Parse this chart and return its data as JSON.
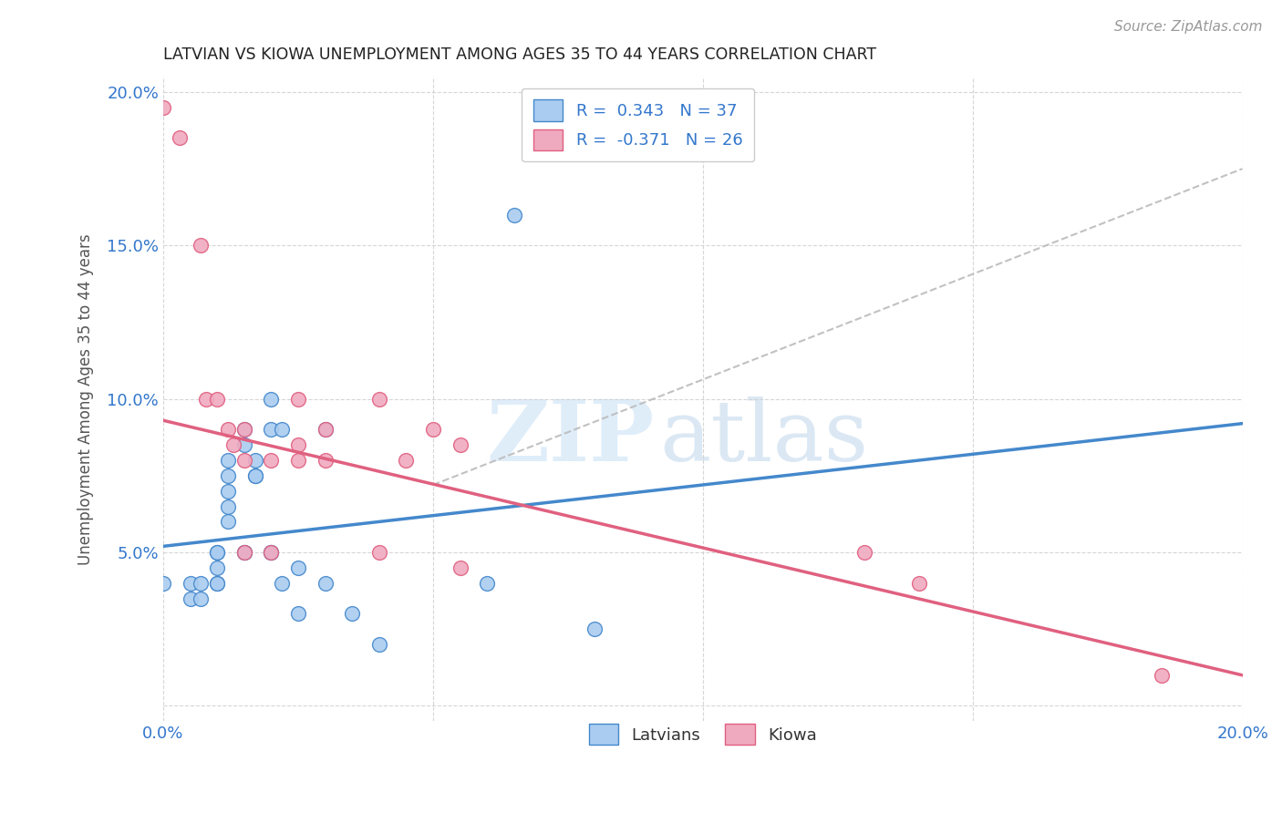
{
  "title": "LATVIAN VS KIOWA UNEMPLOYMENT AMONG AGES 35 TO 44 YEARS CORRELATION CHART",
  "source": "Source: ZipAtlas.com",
  "ylabel": "Unemployment Among Ages 35 to 44 years",
  "xlim": [
    0.0,
    0.2
  ],
  "ylim": [
    -0.005,
    0.205
  ],
  "ytick_vals": [
    0.0,
    0.05,
    0.1,
    0.15,
    0.2
  ],
  "ytick_labels": [
    "",
    "5.0%",
    "10.0%",
    "15.0%",
    "20.0%"
  ],
  "xtick_vals": [
    0.0,
    0.05,
    0.1,
    0.15,
    0.2
  ],
  "xtick_labels": [
    "0.0%",
    "",
    "",
    "",
    "20.0%"
  ],
  "legend_latvians_r": "0.343",
  "legend_latvians_n": "37",
  "legend_kiowa_r": "-0.371",
  "legend_kiowa_n": "26",
  "latvian_color": "#aaccf0",
  "kiowa_color": "#f0aac0",
  "latvian_line_color": "#4488cc",
  "kiowa_line_color": "#e06080",
  "dash_line_color": "#bbbbbb",
  "background_color": "#ffffff",
  "watermark_zip": "ZIP",
  "watermark_atlas": "atlas",
  "latvian_scatter_x": [
    0.0,
    0.005,
    0.005,
    0.007,
    0.007,
    0.01,
    0.01,
    0.01,
    0.01,
    0.01,
    0.012,
    0.012,
    0.012,
    0.012,
    0.012,
    0.015,
    0.015,
    0.015,
    0.015,
    0.017,
    0.017,
    0.017,
    0.02,
    0.02,
    0.02,
    0.02,
    0.022,
    0.022,
    0.025,
    0.025,
    0.03,
    0.03,
    0.035,
    0.04,
    0.06,
    0.065,
    0.08
  ],
  "latvian_scatter_y": [
    0.04,
    0.04,
    0.035,
    0.04,
    0.035,
    0.05,
    0.05,
    0.045,
    0.04,
    0.04,
    0.08,
    0.075,
    0.07,
    0.065,
    0.06,
    0.09,
    0.085,
    0.05,
    0.05,
    0.08,
    0.075,
    0.075,
    0.1,
    0.09,
    0.05,
    0.05,
    0.09,
    0.04,
    0.045,
    0.03,
    0.09,
    0.04,
    0.03,
    0.02,
    0.04,
    0.16,
    0.025
  ],
  "kiowa_scatter_x": [
    0.0,
    0.003,
    0.007,
    0.008,
    0.01,
    0.012,
    0.013,
    0.015,
    0.015,
    0.015,
    0.02,
    0.02,
    0.025,
    0.025,
    0.025,
    0.03,
    0.03,
    0.04,
    0.04,
    0.045,
    0.05,
    0.055,
    0.055,
    0.13,
    0.14,
    0.185
  ],
  "kiowa_scatter_y": [
    0.195,
    0.185,
    0.15,
    0.1,
    0.1,
    0.09,
    0.085,
    0.09,
    0.08,
    0.05,
    0.08,
    0.05,
    0.1,
    0.085,
    0.08,
    0.09,
    0.08,
    0.1,
    0.05,
    0.08,
    0.09,
    0.085,
    0.045,
    0.05,
    0.04,
    0.01
  ],
  "latvian_line_x0": 0.0,
  "latvian_line_x1": 0.2,
  "latvian_line_y0": 0.052,
  "latvian_line_y1": 0.092,
  "kiowa_line_x0": 0.0,
  "kiowa_line_x1": 0.2,
  "kiowa_line_y0": 0.093,
  "kiowa_line_y1": 0.01,
  "dash_line_x0": 0.05,
  "dash_line_x1": 0.2,
  "dash_line_y0": 0.072,
  "dash_line_y1": 0.175
}
